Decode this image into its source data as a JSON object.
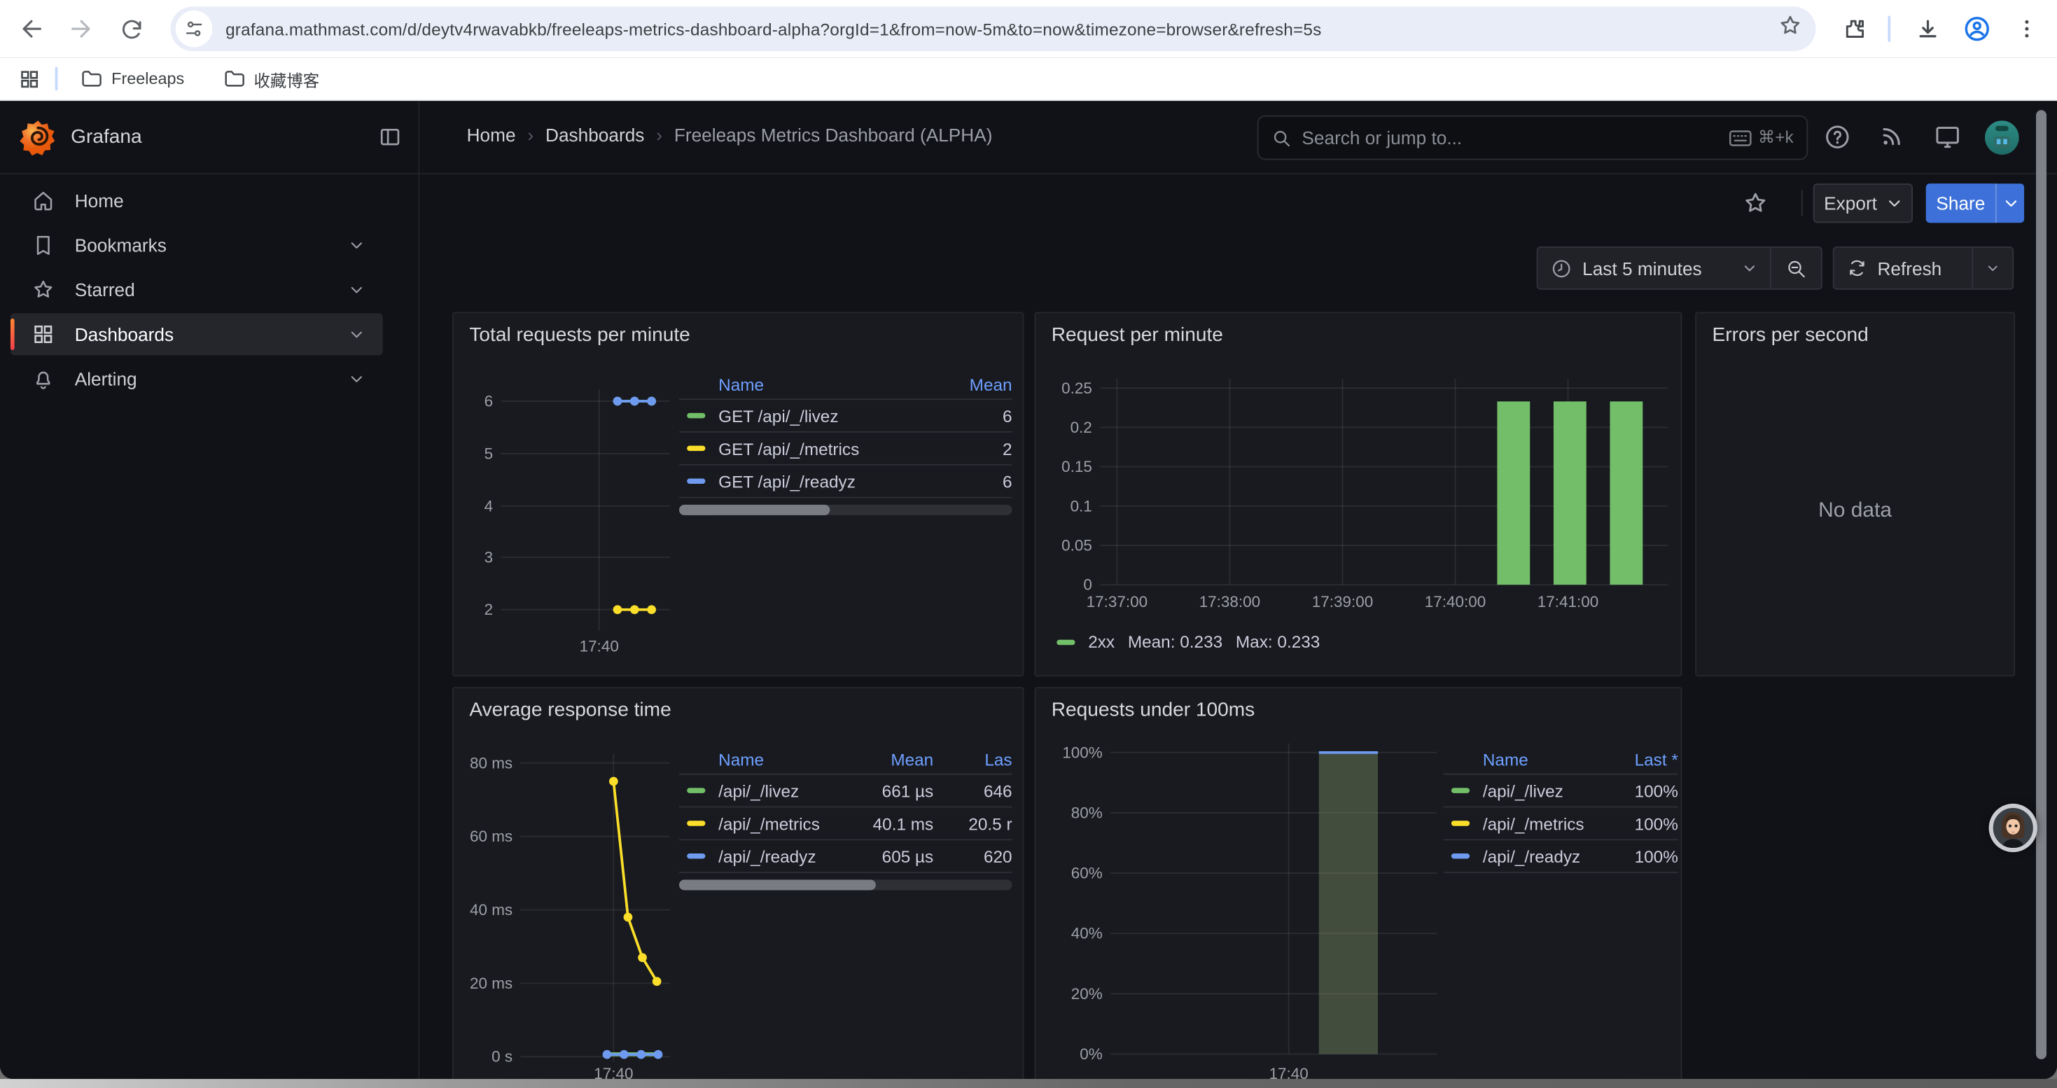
{
  "browser": {
    "url": "grafana.mathmast.com/d/deytv4rwavabkb/freeleaps-metrics-dashboard-alpha?orgId=1&from=now-5m&to=now&timezone=browser&refresh=5s",
    "bookmarks_bar": {
      "folders": [
        "Freeleaps",
        "收藏博客"
      ]
    }
  },
  "header": {
    "brand": "Grafana",
    "breadcrumb": {
      "items": [
        "Home",
        "Dashboards",
        "Freeleaps Metrics Dashboard (ALPHA)"
      ],
      "separator": "›"
    },
    "search": {
      "placeholder": "Search or jump to...",
      "shortcut": "⌘+k"
    },
    "actions": {
      "export_label": "Export",
      "share_label": "Share"
    }
  },
  "sidebar": {
    "items": [
      {
        "label": "Home",
        "icon": "home-icon",
        "expandable": false,
        "active": false
      },
      {
        "label": "Bookmarks",
        "icon": "bookmark-icon",
        "expandable": true,
        "active": false
      },
      {
        "label": "Starred",
        "icon": "star-icon",
        "expandable": true,
        "active": false
      },
      {
        "label": "Dashboards",
        "icon": "apps-grid-icon",
        "expandable": true,
        "active": true
      },
      {
        "label": "Alerting",
        "icon": "bell-icon",
        "expandable": true,
        "active": false
      }
    ]
  },
  "time_controls": {
    "range_label": "Last 5 minutes",
    "refresh_label": "Refresh"
  },
  "colors": {
    "series_green": "#73BF69",
    "series_yellow": "#FADE2A",
    "series_blue": "#6E9BF0",
    "legend_header_blue": "#6E9FFF",
    "share_button_blue": "#3D71D9",
    "bar_green": "#73BF69",
    "pct_bar_fill": "rgba(140,160,110,0.38)",
    "axis_text": "#9DA0A6",
    "grid_line": "rgba(204,204,220,0.10)"
  },
  "panels": {
    "total_requests": {
      "title": "Total requests per minute",
      "chart_data": {
        "type": "line",
        "y_ticks": [
          "6",
          "5",
          "4",
          "3",
          "2"
        ],
        "y_tick_values": [
          6,
          5,
          4,
          3,
          2
        ],
        "x_ticks": [
          "17:40"
        ],
        "series": [
          {
            "name": "GET /api/_/livez",
            "color": "#73BF69",
            "value": 6,
            "points": 3
          },
          {
            "name": "GET /api/_/metrics",
            "color": "#FADE2A",
            "value": 2,
            "points": 3
          },
          {
            "name": "GET /api/_/readyz",
            "color": "#6E9BF0",
            "value": 6,
            "points": 3
          }
        ]
      },
      "legend": {
        "headers": [
          "Name",
          "Mean"
        ],
        "rows": [
          {
            "name": "GET /api/_/livez",
            "color": "#73BF69",
            "mean": "6"
          },
          {
            "name": "GET /api/_/metrics",
            "color": "#FADE2A",
            "mean": "2"
          },
          {
            "name": "GET /api/_/readyz",
            "color": "#6E9BF0",
            "mean": "6"
          }
        ]
      }
    },
    "request_per_minute": {
      "title": "Request per minute",
      "chart_data": {
        "type": "bar",
        "y_ticks": [
          "0.25",
          "0.2",
          "0.15",
          "0.1",
          "0.05",
          "0"
        ],
        "ylim": [
          0,
          0.25
        ],
        "x_ticks": [
          "17:37:00",
          "17:38:00",
          "17:39:00",
          "17:40:00",
          "17:41:00"
        ],
        "bars": [
          0.233,
          0.233,
          0.233
        ],
        "bar_color": "#73BF69"
      },
      "legend": {
        "series": "2xx",
        "mean_label": "Mean: 0.233",
        "max_label": "Max: 0.233"
      }
    },
    "errors_per_second": {
      "title": "Errors per second",
      "no_data": "No data"
    },
    "avg_response_time": {
      "title": "Average response time",
      "chart_data": {
        "type": "line",
        "y_ticks": [
          "80 ms",
          "60 ms",
          "40 ms",
          "20 ms",
          "0 s"
        ],
        "ylim_ms": [
          0,
          80
        ],
        "x_ticks": [
          "17:40"
        ],
        "series": [
          {
            "name": "/api/_/livez",
            "color": "#73BF69",
            "values_ms": [
              0.66,
              0.66,
              0.66,
              0.66
            ]
          },
          {
            "name": "/api/_/metrics",
            "color": "#FADE2A",
            "values_ms": [
              75,
              38,
              27,
              20.5
            ]
          },
          {
            "name": "/api/_/readyz",
            "color": "#6E9BF0",
            "values_ms": [
              0.6,
              0.6,
              0.6,
              0.6
            ]
          }
        ]
      },
      "legend": {
        "headers": [
          "Name",
          "Mean",
          "Las"
        ],
        "rows": [
          {
            "name": "/api/_/livez",
            "color": "#73BF69",
            "mean": "661 µs",
            "last": "646"
          },
          {
            "name": "/api/_/metrics",
            "color": "#FADE2A",
            "mean": "40.1 ms",
            "last": "20.5 r"
          },
          {
            "name": "/api/_/readyz",
            "color": "#6E9BF0",
            "mean": "605 µs",
            "last": "620"
          }
        ]
      }
    },
    "requests_under_100ms": {
      "title": "Requests under 100ms",
      "chart_data": {
        "type": "bar",
        "y_ticks": [
          "100%",
          "80%",
          "60%",
          "40%",
          "20%",
          "0%"
        ],
        "ylim_pct": [
          0,
          100
        ],
        "x_ticks": [
          "17:40"
        ],
        "bar_value_pct": 100,
        "bar_fill": "rgba(140,160,110,0.38)",
        "bar_top_color": "#6E9BF0"
      },
      "legend": {
        "headers": [
          "Name",
          "Last *"
        ],
        "rows": [
          {
            "name": "/api/_/livez",
            "color": "#73BF69",
            "last": "100%"
          },
          {
            "name": "/api/_/metrics",
            "color": "#FADE2A",
            "last": "100%"
          },
          {
            "name": "/api/_/readyz",
            "color": "#6E9BF0",
            "last": "100%"
          }
        ]
      }
    }
  }
}
